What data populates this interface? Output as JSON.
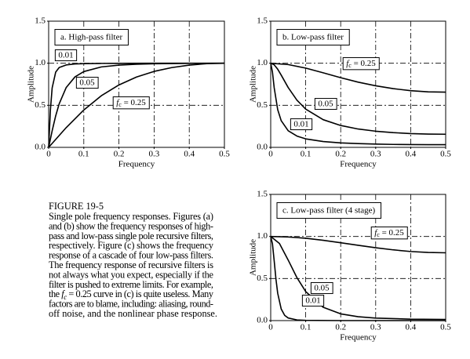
{
  "chart_data": [
    {
      "type": "line",
      "title": "a.  High-pass filter",
      "xlabel": "Frequency",
      "ylabel": "Amplitude",
      "xlim": [
        0,
        0.5
      ],
      "ylim": [
        0,
        1.5
      ],
      "xticks": [
        0,
        0.1,
        0.2,
        0.3,
        0.4,
        0.5
      ],
      "yticks": [
        {
          "value": 0,
          "label": "0.0"
        },
        {
          "value": 0.5,
          "label": "0.5"
        },
        {
          "value": 1,
          "label": "1.0"
        },
        {
          "value": 1.5,
          "label": "1.5"
        }
      ],
      "grid": true,
      "series": [
        {
          "name": "0.01",
          "color": "#000000",
          "x": [
            0,
            0.005,
            0.01,
            0.02,
            0.03,
            0.05,
            0.075,
            0.1,
            0.15,
            0.2,
            0.3,
            0.4,
            0.5
          ],
          "values": [
            0,
            0.446,
            0.707,
            0.894,
            0.949,
            0.98,
            0.992,
            0.995,
            0.998,
            0.999,
            1,
            1,
            1
          ]
        },
        {
          "name": "0.05",
          "color": "#000000",
          "x": [
            0,
            0.01,
            0.02,
            0.03,
            0.05,
            0.075,
            0.1,
            0.15,
            0.2,
            0.25,
            0.3,
            0.4,
            0.5
          ],
          "values": [
            0,
            0.197,
            0.374,
            0.518,
            0.712,
            0.838,
            0.901,
            0.956,
            0.978,
            0.988,
            0.994,
            0.999,
            1
          ]
        },
        {
          "name": {
            "main": "f",
            "sub": "c",
            "rest": " = 0.25"
          },
          "color": "#000000",
          "x": [
            0,
            0.05,
            0.1,
            0.15,
            0.2,
            0.25,
            0.3,
            0.35,
            0.4,
            0.45,
            0.5
          ],
          "values": [
            0,
            0.235,
            0.444,
            0.614,
            0.742,
            0.836,
            0.903,
            0.948,
            0.978,
            0.995,
            1
          ]
        }
      ]
    },
    {
      "type": "line",
      "title": "b.  Low-pass filter",
      "xlabel": "Frequency",
      "ylabel": "Amplitude",
      "xlim": [
        0,
        0.5
      ],
      "ylim": [
        0,
        1.5
      ],
      "xticks": [
        0,
        0.1,
        0.2,
        0.3,
        0.4,
        0.5
      ],
      "yticks": [
        {
          "value": 0,
          "label": "0.0"
        },
        {
          "value": 0.5,
          "label": "0.5"
        },
        {
          "value": 1,
          "label": "1.0"
        },
        {
          "value": 1.5,
          "label": "1.5"
        }
      ],
      "grid": true,
      "series": [
        {
          "name": "0.01",
          "color": "#000000",
          "x": [
            0,
            0.005,
            0.01,
            0.02,
            0.03,
            0.05,
            0.075,
            0.1,
            0.15,
            0.2,
            0.25,
            0.3,
            0.35,
            0.4,
            0.45,
            0.5
          ],
          "values": [
            1,
            0.895,
            0.708,
            0.448,
            0.317,
            0.197,
            0.134,
            0.101,
            0.069,
            0.053,
            0.045,
            0.039,
            0.035,
            0.033,
            0.032,
            0.032
          ]
        },
        {
          "name": "0.05",
          "color": "#000000",
          "x": [
            0,
            0.01,
            0.02,
            0.03,
            0.05,
            0.075,
            0.1,
            0.15,
            0.2,
            0.25,
            0.3,
            0.35,
            0.4,
            0.45,
            0.5
          ],
          "values": [
            1,
            0.981,
            0.929,
            0.859,
            0.711,
            0.561,
            0.455,
            0.329,
            0.26,
            0.218,
            0.192,
            0.175,
            0.164,
            0.158,
            0.156
          ]
        },
        {
          "name": {
            "main": "f",
            "sub": "c",
            "rest": " = 0.25"
          },
          "color": "#000000",
          "x": [
            0,
            0.05,
            0.1,
            0.15,
            0.2,
            0.25,
            0.3,
            0.35,
            0.4,
            0.45,
            0.5
          ],
          "values": [
            1,
            0.984,
            0.942,
            0.886,
            0.828,
            0.775,
            0.732,
            0.698,
            0.674,
            0.66,
            0.656
          ]
        }
      ]
    },
    {
      "type": "line",
      "title": "c.  Low-pass filter (4 stage)",
      "xlabel": "Frequency",
      "ylabel": "Amplitude",
      "xlim": [
        0,
        0.5
      ],
      "ylim": [
        0,
        1.5
      ],
      "xticks": [
        0,
        0.1,
        0.2,
        0.3,
        0.4,
        0.5
      ],
      "yticks": [
        {
          "value": 0,
          "label": "0.0"
        },
        {
          "value": 0.5,
          "label": "0.5"
        },
        {
          "value": 1,
          "label": "1.0"
        },
        {
          "value": 1.5,
          "label": "1.5"
        }
      ],
      "grid": true,
      "series": [
        {
          "name": "0.01",
          "color": "#000000",
          "x": [
            0,
            0.005,
            0.01,
            0.015,
            0.02,
            0.03,
            0.04,
            0.05,
            0.075,
            0.1,
            0.2,
            0.3,
            0.4,
            0.5
          ],
          "values": [
            1,
            0.913,
            0.709,
            0.493,
            0.325,
            0.138,
            0.062,
            0.031,
            0.008,
            0.003,
            0,
            0,
            0,
            0
          ]
        },
        {
          "name": "0.05",
          "color": "#000000",
          "x": [
            0,
            0.025,
            0.05,
            0.075,
            0.1,
            0.15,
            0.2,
            0.25,
            0.3,
            0.4,
            0.5
          ],
          "values": [
            1,
            0.916,
            0.719,
            0.51,
            0.345,
            0.158,
            0.08,
            0.046,
            0.03,
            0.017,
            0.014
          ]
        },
        {
          "name": {
            "main": "f",
            "sub": "c",
            "rest": " = 0.25"
          },
          "color": "#000000",
          "x": [
            0,
            0.05,
            0.1,
            0.15,
            0.2,
            0.25,
            0.3,
            0.35,
            0.4,
            0.45,
            0.5
          ],
          "values": [
            1,
            0.994,
            0.979,
            0.954,
            0.925,
            0.895,
            0.866,
            0.841,
            0.821,
            0.81,
            0.806
          ]
        }
      ]
    }
  ],
  "caption": {
    "heading": "FIGURE 19-5",
    "lines": [
      "Single pole frequency responses.  Figures (a)",
      "and (b) show the frequency responses of high-",
      "pass and low-pass single pole recursive filters,",
      "respectively.  Figure (c) shows the frequency",
      "response of a cascade of four low-pass filters.",
      "The frequency response of recursive filters is",
      "not always what you expect, especially if the",
      "filter is pushed to extreme limits.  For example,",
      {
        "before": "the ",
        "main": "f",
        "sub": "c",
        "after": " = 0.25 curve in (c) is quite useless.  Many"
      },
      "factors are to blame, including: aliasing, round-",
      "off noise, and the nonlinear phase response."
    ]
  }
}
